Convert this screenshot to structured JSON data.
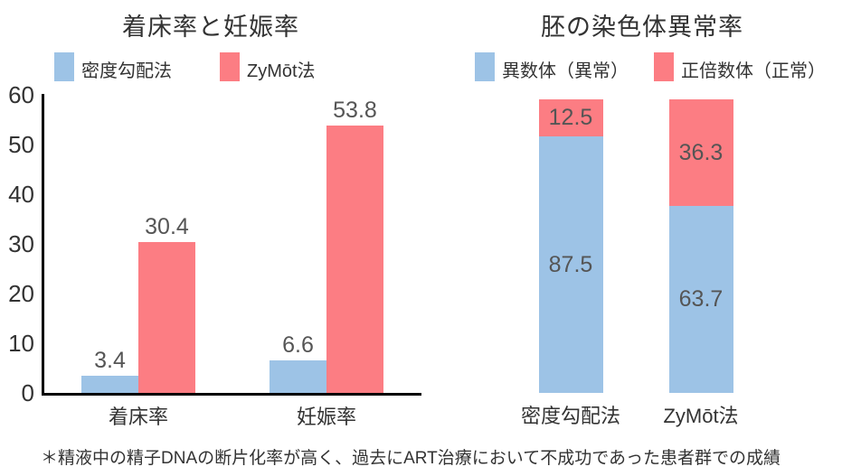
{
  "footnote": "＊精液中の精子DNAの断片化率が高く、過去にART治療において不成功であった患者群での成績",
  "colors": {
    "series_blue": "#9DC3E6",
    "series_red": "#FC7D83",
    "axis": "#000000",
    "data_label": "#555555",
    "text": "#333333"
  },
  "chart_data": [
    {
      "type": "bar",
      "title": "着床率と妊娠率",
      "categories": [
        "着床率",
        "妊娠率"
      ],
      "series": [
        {
          "id": "density-gradient",
          "name": "密度勾配法",
          "color": "#9DC3E6",
          "values": [
            3.4,
            6.6
          ]
        },
        {
          "id": "zymot",
          "name": "ZyMōt法",
          "color": "#FC7D83",
          "values": [
            30.4,
            53.8
          ]
        }
      ],
      "ylabel": "",
      "xlabel": "",
      "ylim": [
        0,
        60
      ],
      "yticks": [
        0,
        10,
        20,
        30,
        40,
        50,
        60
      ],
      "grid": false,
      "legend_position": "top"
    },
    {
      "type": "bar",
      "subtype": "stacked-100pct",
      "title": "胚の染色体異常率",
      "categories": [
        "密度勾配法",
        "ZyMōt法"
      ],
      "series": [
        {
          "id": "aneuploid",
          "name": "異数体（異常）",
          "color": "#9DC3E6",
          "values": [
            87.5,
            63.7
          ]
        },
        {
          "id": "euploid",
          "name": "正倍数体（正常）",
          "color": "#FC7D83",
          "values": [
            12.5,
            36.3
          ]
        }
      ],
      "ylabel": "",
      "xlabel": "",
      "ylim": [
        0,
        100
      ],
      "grid": false,
      "legend_position": "top",
      "stack_order_top_to_bottom": [
        "euploid",
        "aneuploid"
      ]
    }
  ]
}
